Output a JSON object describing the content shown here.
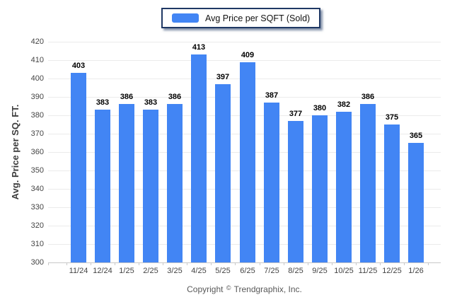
{
  "legend": {
    "label": "Avg Price per SQFT (Sold)",
    "swatch_color": "#4285F4",
    "border_color": "#1f3864"
  },
  "chart_data": {
    "type": "bar",
    "title": "",
    "categories": [
      "11/24",
      "12/24",
      "1/25",
      "2/25",
      "3/25",
      "4/25",
      "5/25",
      "6/25",
      "7/25",
      "8/25",
      "9/25",
      "10/25",
      "11/25",
      "12/25",
      "1/26"
    ],
    "values": [
      403,
      383,
      386,
      383,
      386,
      413,
      397,
      409,
      387,
      377,
      380,
      382,
      386,
      375,
      365
    ],
    "series_name": "Avg Price per SQFT (Sold)",
    "xlabel": "",
    "ylabel": "Avg. Price per SQ. FT.",
    "ylim": [
      300,
      420
    ],
    "y_ticks": [
      "420",
      "410",
      "400",
      "390",
      "380",
      "370",
      "360",
      "350",
      "340",
      "330",
      "320",
      "310",
      "300"
    ],
    "grid": true,
    "legend_position": "top-center",
    "bar_color": "#4285F4",
    "value_labels_shown": true
  },
  "footer": {
    "copyright_prefix": "Copyright",
    "copyright_symbol": "©",
    "copyright_company": "Trendgraphix, Inc."
  }
}
